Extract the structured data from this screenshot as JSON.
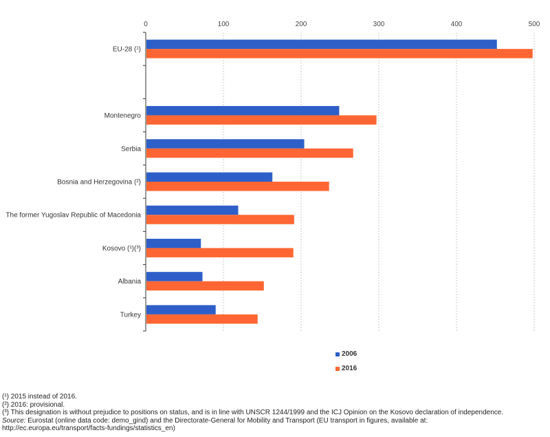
{
  "chart_data": {
    "type": "bar",
    "orientation": "horizontal",
    "title": "",
    "xlabel": "",
    "ylabel": "",
    "xlim": [
      0,
      500
    ],
    "x_ticks": [
      0,
      100,
      200,
      300,
      400,
      500
    ],
    "x_axis_position": "top",
    "grid": true,
    "legend_position": "bottom-center",
    "categories": [
      "EU-28 (¹)",
      "",
      "Montenegro",
      "Serbia",
      "Bosnia and Herzegovina (²)",
      "The former Yugoslav Republic of Macedonia",
      "Kosovo (¹)(³)",
      "Albania",
      "Turkey"
    ],
    "series": [
      {
        "name": "2006",
        "color": "#2E5FC9",
        "values": [
          452,
          null,
          249,
          204,
          163,
          119,
          71,
          73,
          90
        ]
      },
      {
        "name": "2016",
        "color": "#FF6633",
        "values": [
          498,
          null,
          297,
          267,
          236,
          191,
          190,
          152,
          144
        ]
      }
    ]
  },
  "footnotes": [
    "(¹) 2015 instead of 2016.",
    "(²) 2016: provisional.",
    "(³) This designation is without prejudice to positions on status, and is in line with UNSCR 1244/1999 and the ICJ Opinion on the Kosovo declaration of independence."
  ],
  "source": {
    "label": "Source:",
    "text": " Eurostat (online data code: demo_gind) and the Directorate-General for Mobility and Transport (EU transport in figures, available at:",
    "text2": "http://ec.europa.eu/transport/facts-fundings/statistics_en)"
  }
}
